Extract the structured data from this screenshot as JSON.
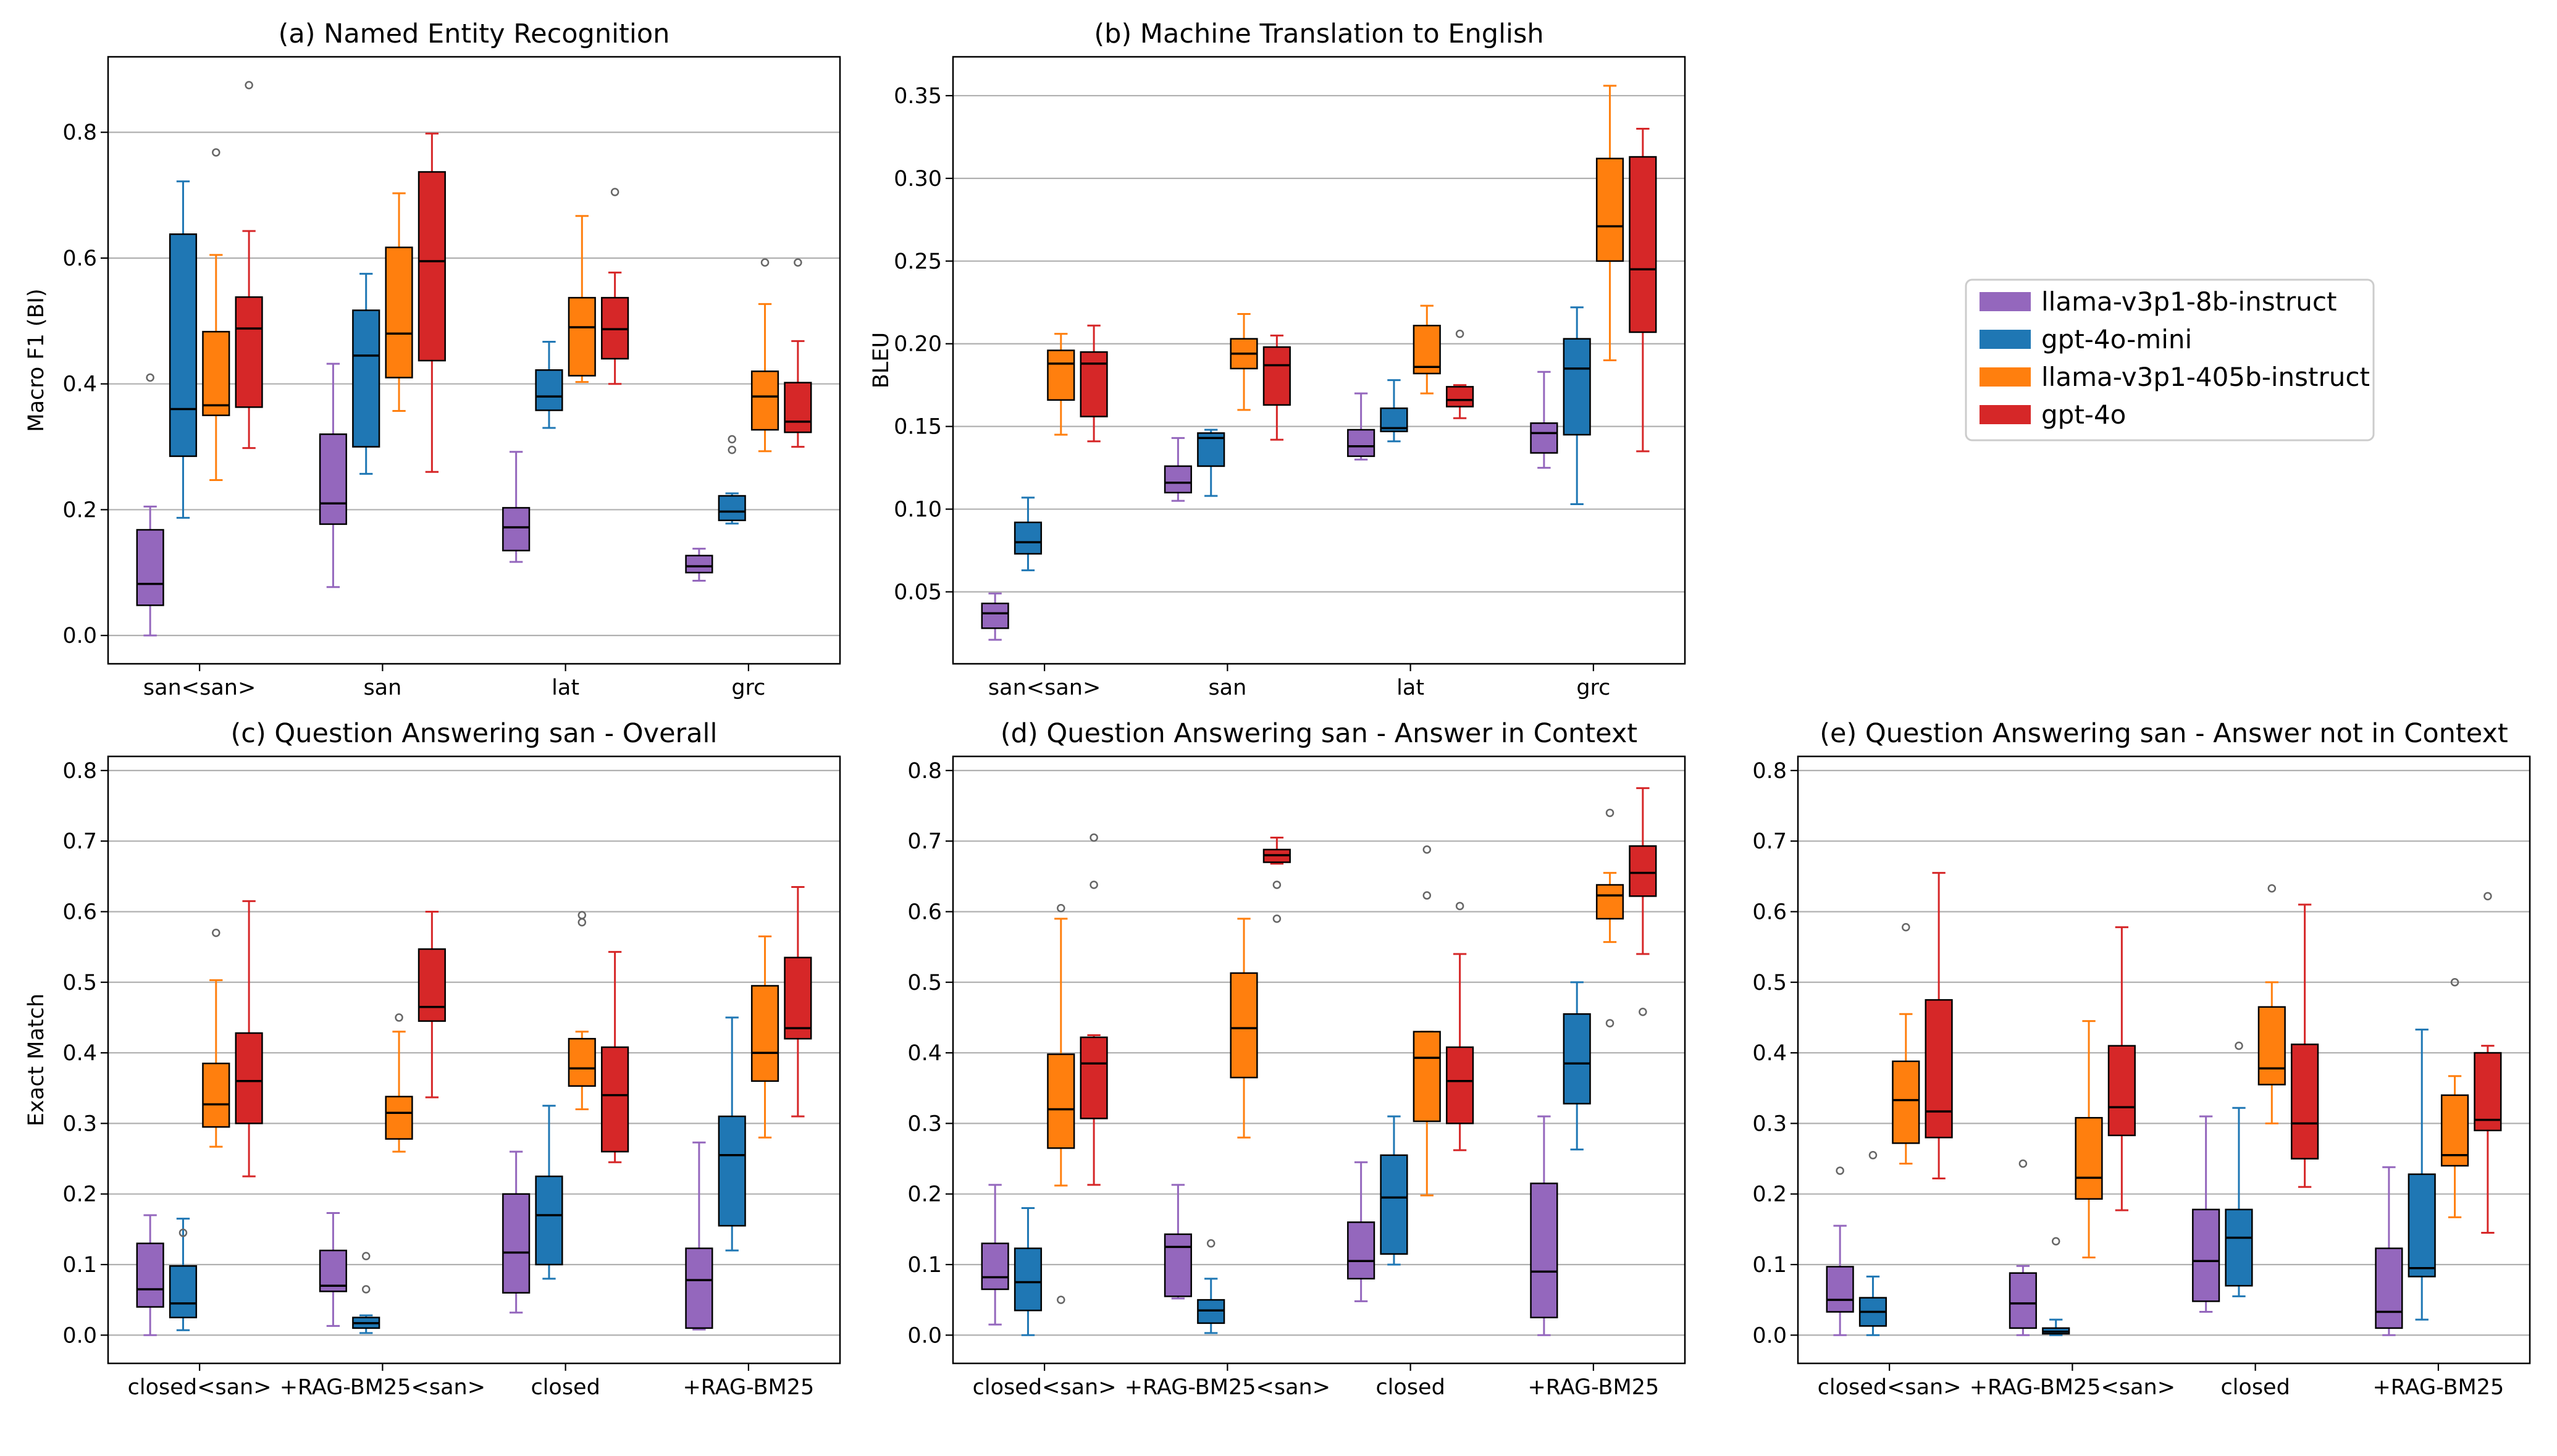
{
  "colors": {
    "llama-v3p1-8b-instruct": "#9467bd",
    "gpt-4o-mini": "#1f77b4",
    "llama-v3p1-405b-instruct": "#ff7f0e",
    "gpt-4o": "#d62728"
  },
  "legend": {
    "entries": [
      "llama-v3p1-8b-instruct",
      "gpt-4o-mini",
      "llama-v3p1-405b-instruct",
      "gpt-4o"
    ]
  },
  "chart_data": [
    {
      "type": "box",
      "title": "(a) Named Entity Recognition",
      "ylabel": "Macro F1 (BI)",
      "ylim": [
        -0.045,
        0.92
      ],
      "yticks": [
        "0.0",
        "0.2",
        "0.4",
        "0.6",
        "0.8"
      ],
      "categories": [
        "san<san>",
        "san",
        "lat",
        "grc"
      ],
      "series": [
        {
          "name": "llama-v3p1-8b-instruct",
          "boxes": [
            [
              0.0,
              0.048,
              0.082,
              0.168,
              0.205
            ],
            [
              0.077,
              0.177,
              0.21,
              0.32,
              0.432
            ],
            [
              0.117,
              0.135,
              0.172,
              0.203,
              0.292
            ],
            [
              0.087,
              0.1,
              0.11,
              0.127,
              0.138
            ]
          ],
          "outliers": [
            [
              0.41
            ],
            [],
            [],
            []
          ]
        },
        {
          "name": "gpt-4o-mini",
          "boxes": [
            [
              0.187,
              0.285,
              0.36,
              0.638,
              0.722
            ],
            [
              0.257,
              0.3,
              0.445,
              0.517,
              0.575
            ],
            [
              0.33,
              0.358,
              0.38,
              0.422,
              0.467
            ],
            [
              0.178,
              0.183,
              0.197,
              0.222,
              0.226
            ]
          ],
          "outliers": [
            [],
            [],
            [],
            [
              0.295,
              0.312
            ]
          ]
        },
        {
          "name": "llama-v3p1-405b-instruct",
          "boxes": [
            [
              0.247,
              0.35,
              0.366,
              0.483,
              0.605
            ],
            [
              0.357,
              0.41,
              0.48,
              0.617,
              0.703
            ],
            [
              0.403,
              0.413,
              0.49,
              0.537,
              0.667
            ],
            [
              0.293,
              0.327,
              0.38,
              0.42,
              0.527
            ]
          ],
          "outliers": [
            [
              0.768
            ],
            [],
            [],
            [
              0.593
            ]
          ]
        },
        {
          "name": "gpt-4o",
          "boxes": [
            [
              0.298,
              0.363,
              0.488,
              0.538,
              0.643
            ],
            [
              0.26,
              0.437,
              0.595,
              0.737,
              0.798
            ],
            [
              0.4,
              0.44,
              0.487,
              0.537,
              0.577
            ],
            [
              0.3,
              0.323,
              0.34,
              0.402,
              0.468
            ]
          ],
          "outliers": [
            [
              0.875
            ],
            [],
            [
              0.705
            ],
            [
              0.593
            ]
          ]
        }
      ]
    },
    {
      "type": "box",
      "title": "(b) Machine Translation to English",
      "ylabel": "BLEU",
      "ylim": [
        0.0065,
        0.3735
      ],
      "yticks": [
        "0.05",
        "0.10",
        "0.15",
        "0.20",
        "0.25",
        "0.30",
        "0.35"
      ],
      "categories": [
        "san<san>",
        "san",
        "lat",
        "grc"
      ],
      "series": [
        {
          "name": "llama-v3p1-8b-instruct",
          "boxes": [
            [
              0.021,
              0.028,
              0.037,
              0.043,
              0.049
            ],
            [
              0.105,
              0.11,
              0.116,
              0.126,
              0.143
            ],
            [
              0.13,
              0.132,
              0.138,
              0.148,
              0.17
            ],
            [
              0.125,
              0.134,
              0.146,
              0.152,
              0.183
            ]
          ],
          "outliers": [
            [],
            [],
            [],
            []
          ]
        },
        {
          "name": "gpt-4o-mini",
          "boxes": [
            [
              0.063,
              0.073,
              0.08,
              0.092,
              0.107
            ],
            [
              0.108,
              0.126,
              0.143,
              0.146,
              0.148
            ],
            [
              0.141,
              0.147,
              0.149,
              0.161,
              0.178
            ],
            [
              0.103,
              0.145,
              0.185,
              0.203,
              0.222
            ]
          ],
          "outliers": [
            [],
            [],
            [],
            []
          ]
        },
        {
          "name": "llama-v3p1-405b-instruct",
          "boxes": [
            [
              0.145,
              0.166,
              0.188,
              0.196,
              0.206
            ],
            [
              0.16,
              0.185,
              0.194,
              0.203,
              0.218
            ],
            [
              0.17,
              0.182,
              0.186,
              0.211,
              0.223
            ],
            [
              0.19,
              0.25,
              0.271,
              0.312,
              0.356
            ]
          ],
          "outliers": [
            [],
            [],
            [],
            []
          ]
        },
        {
          "name": "gpt-4o",
          "boxes": [
            [
              0.141,
              0.156,
              0.188,
              0.195,
              0.211
            ],
            [
              0.142,
              0.163,
              0.187,
              0.198,
              0.205
            ],
            [
              0.155,
              0.162,
              0.166,
              0.174,
              0.175
            ],
            [
              0.135,
              0.207,
              0.245,
              0.313,
              0.33
            ]
          ],
          "outliers": [
            [],
            [],
            [
              0.206
            ],
            []
          ]
        }
      ]
    },
    {
      "type": "box",
      "title": "(c) Question Answering san - Overall",
      "ylabel": "Exact Match",
      "ylim": [
        -0.04,
        0.82
      ],
      "yticks": [
        "0.0",
        "0.1",
        "0.2",
        "0.3",
        "0.4",
        "0.5",
        "0.6",
        "0.7",
        "0.8"
      ],
      "categories": [
        "closed<san>",
        "+RAG-BM25<san>",
        "closed",
        "+RAG-BM25"
      ],
      "series": [
        {
          "name": "llama-v3p1-8b-instruct",
          "boxes": [
            [
              0.0,
              0.04,
              0.065,
              0.13,
              0.17
            ],
            [
              0.013,
              0.062,
              0.07,
              0.12,
              0.173
            ],
            [
              0.032,
              0.06,
              0.117,
              0.2,
              0.26
            ],
            [
              0.008,
              0.01,
              0.078,
              0.123,
              0.273
            ]
          ],
          "outliers": [
            [],
            [],
            [],
            []
          ]
        },
        {
          "name": "gpt-4o-mini",
          "boxes": [
            [
              0.007,
              0.025,
              0.045,
              0.098,
              0.165
            ],
            [
              0.003,
              0.01,
              0.017,
              0.025,
              0.028
            ],
            [
              0.08,
              0.1,
              0.17,
              0.225,
              0.325
            ],
            [
              0.12,
              0.155,
              0.255,
              0.31,
              0.45
            ]
          ],
          "outliers": [
            [
              0.145
            ],
            [
              0.065,
              0.112
            ],
            [],
            []
          ]
        },
        {
          "name": "llama-v3p1-405b-instruct",
          "boxes": [
            [
              0.267,
              0.295,
              0.327,
              0.385,
              0.503
            ],
            [
              0.26,
              0.278,
              0.315,
              0.338,
              0.43
            ],
            [
              0.32,
              0.353,
              0.378,
              0.42,
              0.43
            ],
            [
              0.28,
              0.36,
              0.4,
              0.495,
              0.565
            ]
          ],
          "outliers": [
            [
              0.57
            ],
            [
              0.45
            ],
            [
              0.585,
              0.595
            ],
            []
          ]
        },
        {
          "name": "gpt-4o",
          "boxes": [
            [
              0.225,
              0.3,
              0.36,
              0.428,
              0.615
            ],
            [
              0.337,
              0.445,
              0.465,
              0.547,
              0.6
            ],
            [
              0.245,
              0.26,
              0.34,
              0.408,
              0.543
            ],
            [
              0.31,
              0.42,
              0.435,
              0.535,
              0.635
            ]
          ],
          "outliers": [
            [],
            [],
            [],
            []
          ]
        }
      ]
    },
    {
      "type": "box",
      "title": "(d) Question Answering san - Answer in Context",
      "ylabel": "",
      "ylim": [
        -0.04,
        0.82
      ],
      "yticks": [
        "0.0",
        "0.1",
        "0.2",
        "0.3",
        "0.4",
        "0.5",
        "0.6",
        "0.7",
        "0.8"
      ],
      "categories": [
        "closed<san>",
        "+RAG-BM25<san>",
        "closed",
        "+RAG-BM25"
      ],
      "series": [
        {
          "name": "llama-v3p1-8b-instruct",
          "boxes": [
            [
              0.015,
              0.065,
              0.082,
              0.13,
              0.213
            ],
            [
              0.052,
              0.055,
              0.125,
              0.143,
              0.213
            ],
            [
              0.048,
              0.08,
              0.105,
              0.16,
              0.245
            ],
            [
              0.0,
              0.025,
              0.09,
              0.215,
              0.31
            ]
          ],
          "outliers": [
            [],
            [],
            [],
            []
          ]
        },
        {
          "name": "gpt-4o-mini",
          "boxes": [
            [
              0.0,
              0.035,
              0.075,
              0.123,
              0.18
            ],
            [
              0.003,
              0.017,
              0.035,
              0.05,
              0.08
            ],
            [
              0.1,
              0.115,
              0.195,
              0.255,
              0.31
            ],
            [
              0.263,
              0.328,
              0.385,
              0.455,
              0.5
            ]
          ],
          "outliers": [
            [],
            [
              0.13
            ],
            [],
            []
          ]
        },
        {
          "name": "llama-v3p1-405b-instruct",
          "boxes": [
            [
              0.212,
              0.265,
              0.32,
              0.398,
              0.59
            ],
            [
              0.28,
              0.365,
              0.435,
              0.513,
              0.59
            ],
            [
              0.198,
              0.303,
              0.393,
              0.43,
              0.43
            ],
            [
              0.557,
              0.59,
              0.623,
              0.638,
              0.655
            ]
          ],
          "outliers": [
            [
              0.05,
              0.605
            ],
            [],
            [
              0.623,
              0.688
            ],
            [
              0.442,
              0.74
            ]
          ]
        },
        {
          "name": "gpt-4o",
          "boxes": [
            [
              0.213,
              0.307,
              0.385,
              0.422,
              0.425
            ],
            [
              0.668,
              0.67,
              0.68,
              0.688,
              0.705
            ],
            [
              0.262,
              0.3,
              0.36,
              0.408,
              0.54
            ],
            [
              0.54,
              0.622,
              0.655,
              0.693,
              0.775
            ]
          ],
          "outliers": [
            [
              0.638,
              0.705
            ],
            [
              0.59,
              0.638
            ],
            [
              0.608
            ],
            [
              0.458
            ]
          ]
        }
      ]
    },
    {
      "type": "box",
      "title": "(e) Question Answering san - Answer not in Context",
      "ylabel": "",
      "ylim": [
        -0.04,
        0.82
      ],
      "yticks": [
        "0.0",
        "0.1",
        "0.2",
        "0.3",
        "0.4",
        "0.5",
        "0.6",
        "0.7",
        "0.8"
      ],
      "categories": [
        "closed<san>",
        "+RAG-BM25<san>",
        "closed",
        "+RAG-BM25"
      ],
      "series": [
        {
          "name": "llama-v3p1-8b-instruct",
          "boxes": [
            [
              0.0,
              0.033,
              0.05,
              0.097,
              0.155
            ],
            [
              0.0,
              0.01,
              0.045,
              0.088,
              0.098
            ],
            [
              0.033,
              0.048,
              0.105,
              0.178,
              0.31
            ],
            [
              0.0,
              0.01,
              0.033,
              0.123,
              0.238
            ]
          ],
          "outliers": [
            [
              0.233
            ],
            [
              0.243
            ],
            [],
            []
          ]
        },
        {
          "name": "gpt-4o-mini",
          "boxes": [
            [
              0.0,
              0.013,
              0.033,
              0.053,
              0.083
            ],
            [
              0.0,
              0.002,
              0.005,
              0.01,
              0.022
            ],
            [
              0.055,
              0.07,
              0.138,
              0.178,
              0.322
            ],
            [
              0.022,
              0.083,
              0.095,
              0.228,
              0.433
            ]
          ],
          "outliers": [
            [
              0.255
            ],
            [
              0.133
            ],
            [
              0.41
            ],
            []
          ]
        },
        {
          "name": "llama-v3p1-405b-instruct",
          "boxes": [
            [
              0.243,
              0.272,
              0.333,
              0.388,
              0.455
            ],
            [
              0.11,
              0.193,
              0.223,
              0.308,
              0.445
            ],
            [
              0.3,
              0.355,
              0.378,
              0.465,
              0.5
            ],
            [
              0.167,
              0.24,
              0.255,
              0.34,
              0.367
            ]
          ],
          "outliers": [
            [
              0.578
            ],
            [],
            [
              0.633
            ],
            [
              0.5
            ]
          ]
        },
        {
          "name": "gpt-4o",
          "boxes": [
            [
              0.222,
              0.28,
              0.317,
              0.475,
              0.655
            ],
            [
              0.177,
              0.283,
              0.323,
              0.41,
              0.578
            ],
            [
              0.21,
              0.25,
              0.3,
              0.412,
              0.61
            ],
            [
              0.145,
              0.29,
              0.305,
              0.4,
              0.41
            ]
          ],
          "outliers": [
            [],
            [],
            [],
            [
              0.622
            ]
          ]
        }
      ]
    }
  ]
}
